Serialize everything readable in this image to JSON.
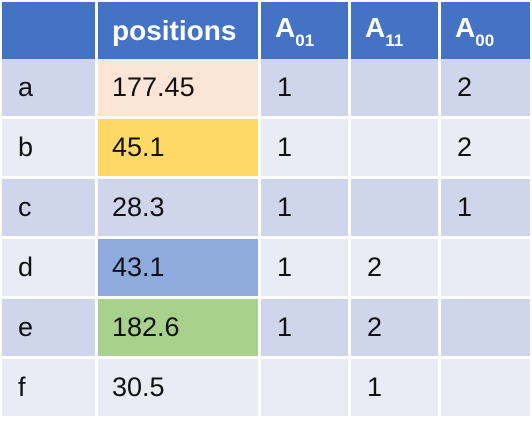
{
  "table": {
    "header": {
      "corner": "",
      "positions": "positions",
      "a01_base": "A",
      "a01_sub": "01",
      "a11_base": "A",
      "a11_sub": "11",
      "a00_base": "A",
      "a00_sub": "00"
    },
    "rows": [
      {
        "label": "a",
        "position": "177.45",
        "a01": "1",
        "a11": "",
        "a00": "2",
        "highlight": "#fbe5d6"
      },
      {
        "label": "b",
        "position": "45.1",
        "a01": "1",
        "a11": "",
        "a00": "2",
        "highlight": "#ffd966"
      },
      {
        "label": "c",
        "position": "28.3",
        "a01": "1",
        "a11": "",
        "a00": "1",
        "highlight": ""
      },
      {
        "label": "d",
        "position": "43.1",
        "a01": "1",
        "a11": "2",
        "a00": "",
        "highlight": "#8faadc"
      },
      {
        "label": "e",
        "position": "182.6",
        "a01": "1",
        "a11": "2",
        "a00": "",
        "highlight": "#a9d18e"
      },
      {
        "label": "f",
        "position": "30.5",
        "a01": "",
        "a11": "1",
        "a00": "",
        "highlight": ""
      }
    ],
    "colors": {
      "header_bg": "#4472c4",
      "row_band_dark": "#cfd5ea",
      "row_band_light": "#e9ebf5"
    }
  }
}
